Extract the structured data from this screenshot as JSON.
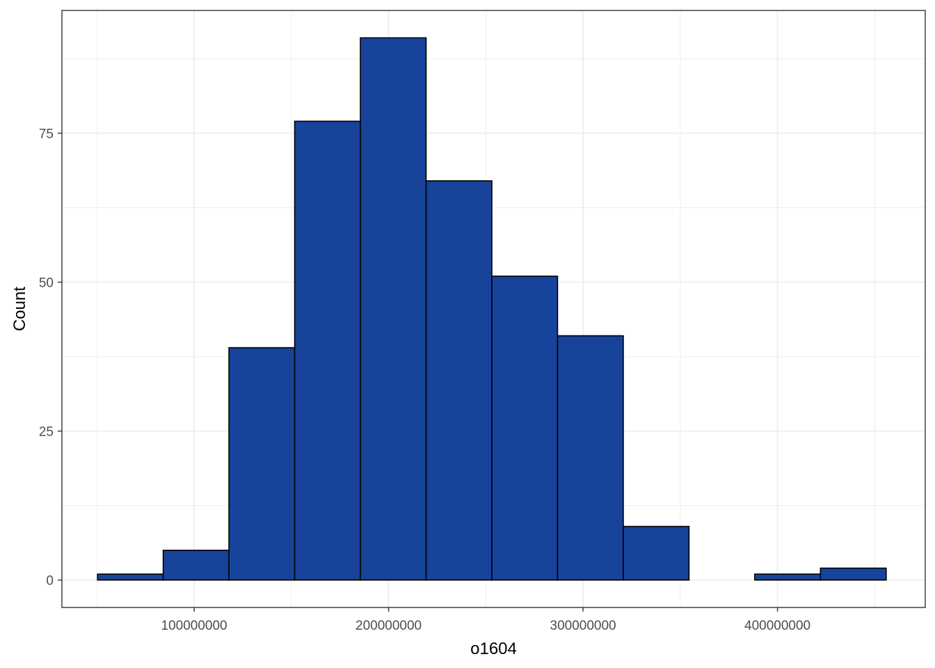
{
  "chart_data": {
    "type": "bar",
    "subtype": "histogram",
    "xlabel": "o1604",
    "ylabel": "Count",
    "x_ticks": [
      100000000,
      200000000,
      300000000,
      400000000
    ],
    "x_tick_labels": [
      "100000000",
      "200000000",
      "300000000",
      "400000000"
    ],
    "y_ticks": [
      0,
      25,
      50,
      75
    ],
    "y_tick_labels": [
      "0",
      "25",
      "50",
      "75"
    ],
    "xlim": [
      32000000,
      476000000
    ],
    "ylim": [
      -4.6,
      95.6
    ],
    "grid": true,
    "bin_width": 33800000,
    "bins": [
      {
        "x0": 50300000,
        "x1": 84100000,
        "count": 1
      },
      {
        "x0": 84100000,
        "x1": 117900000,
        "count": 5
      },
      {
        "x0": 117900000,
        "x1": 151700000,
        "count": 39
      },
      {
        "x0": 151700000,
        "x1": 185500000,
        "count": 77
      },
      {
        "x0": 185500000,
        "x1": 219300000,
        "count": 91
      },
      {
        "x0": 219300000,
        "x1": 253100000,
        "count": 67
      },
      {
        "x0": 253100000,
        "x1": 286900000,
        "count": 51
      },
      {
        "x0": 286900000,
        "x1": 320700000,
        "count": 41
      },
      {
        "x0": 320700000,
        "x1": 354500000,
        "count": 9
      },
      {
        "x0": 354500000,
        "x1": 388300000,
        "count": 0
      },
      {
        "x0": 388300000,
        "x1": 422100000,
        "count": 1
      },
      {
        "x0": 422100000,
        "x1": 455900000,
        "count": 2
      }
    ],
    "colors": {
      "bar_fill": "#17449a",
      "bar_stroke": "#000000",
      "grid": "#ebebeb",
      "panel_border": "#333333",
      "tick_text": "#4d4d4d"
    }
  }
}
